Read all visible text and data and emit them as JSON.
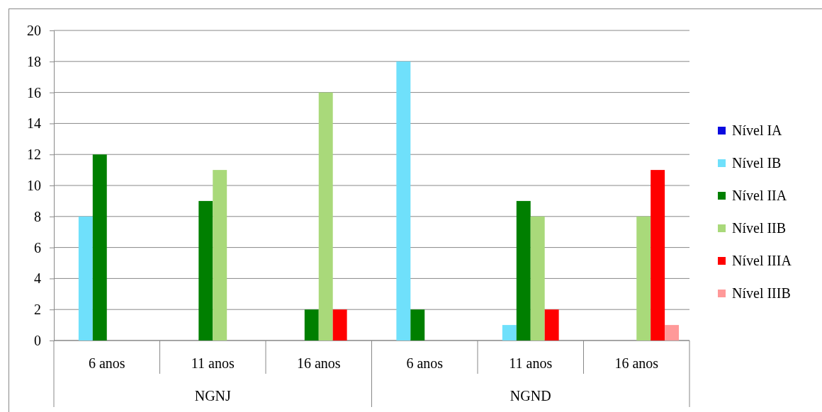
{
  "chart_data": {
    "type": "bar",
    "categories": [
      "6 anos",
      "11 anos",
      "16 anos",
      "6 anos",
      "11 anos",
      "16 anos"
    ],
    "annotations": [
      "NGNJ",
      "NGND"
    ],
    "series": [
      {
        "name": "Nível IA",
        "color": "#0a0ae0",
        "values": [
          0,
          0,
          0,
          0,
          0,
          0
        ]
      },
      {
        "name": "Nível IB",
        "color": "#6fe0fb",
        "values": [
          8,
          0,
          0,
          18,
          1,
          0
        ]
      },
      {
        "name": "Nível IIA",
        "color": "#007f00",
        "values": [
          12,
          9,
          2,
          2,
          9,
          0
        ]
      },
      {
        "name": "Nível IIB",
        "color": "#a9d97a",
        "values": [
          0,
          11,
          16,
          0,
          8,
          8
        ]
      },
      {
        "name": "Nível IIIA",
        "color": "#ff0000",
        "values": [
          0,
          0,
          2,
          0,
          2,
          11
        ]
      },
      {
        "name": "Nível IIIB",
        "color": "#ff9999",
        "values": [
          0,
          0,
          0,
          0,
          0,
          1
        ]
      }
    ],
    "ylim": [
      0,
      20
    ],
    "yticks": [
      0,
      2,
      4,
      6,
      8,
      10,
      12,
      14,
      16,
      18,
      20
    ],
    "grid": "y",
    "legend": "right"
  }
}
